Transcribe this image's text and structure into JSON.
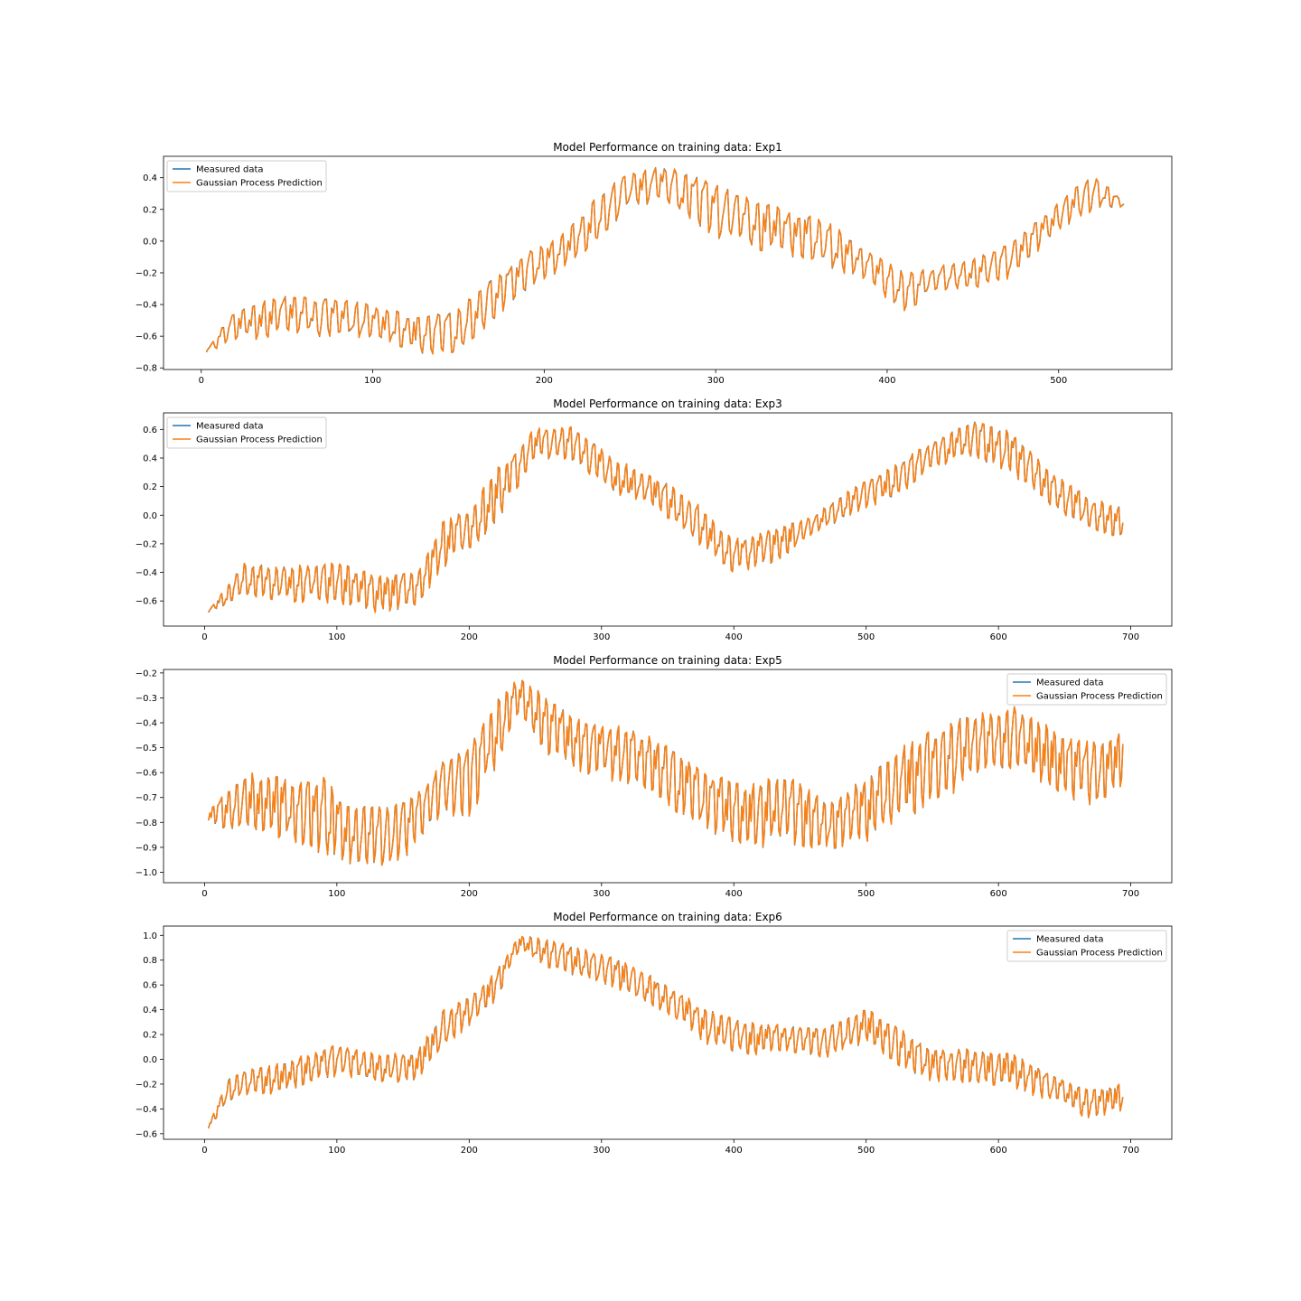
{
  "chart_data": [
    {
      "type": "line",
      "title": "Model Performance on training data: Exp1",
      "xlabel": "",
      "ylabel": "",
      "xlim": [
        -22,
        566
      ],
      "ylim": [
        -0.81,
        0.535
      ],
      "xticks": [
        0,
        100,
        200,
        300,
        400,
        500
      ],
      "yticks": [
        -0.8,
        -0.6,
        -0.4,
        -0.2,
        0.0,
        0.2,
        0.4
      ],
      "ytick_labels": [
        "−0.8",
        "−0.6",
        "−0.4",
        "−0.2",
        "0.0",
        "0.2",
        "0.4"
      ],
      "grid": false,
      "legend_position": "upper-left",
      "x_max": 538,
      "envelope": {
        "x": [
          3,
          20,
          50,
          90,
          110,
          130,
          150,
          170,
          190,
          210,
          230,
          250,
          270,
          300,
          330,
          360,
          390,
          410,
          430,
          450,
          470,
          500,
          520,
          538
        ],
        "high": [
          -0.69,
          -0.42,
          -0.33,
          -0.38,
          -0.43,
          -0.48,
          -0.43,
          -0.22,
          -0.07,
          0.03,
          0.28,
          0.45,
          0.47,
          0.38,
          0.23,
          0.16,
          -0.06,
          -0.2,
          -0.16,
          -0.11,
          -0.03,
          0.25,
          0.43,
          0.25
        ],
        "low": [
          -0.7,
          -0.65,
          -0.61,
          -0.64,
          -0.66,
          -0.75,
          -0.71,
          -0.52,
          -0.32,
          -0.2,
          -0.03,
          0.2,
          0.22,
          0.0,
          -0.09,
          -0.15,
          -0.3,
          -0.46,
          -0.32,
          -0.31,
          -0.25,
          0.05,
          0.18,
          0.22
        ]
      },
      "series": [
        {
          "name": "Measured data",
          "color": "#1f77b4"
        },
        {
          "name": "Gaussian Process Prediction",
          "color": "#ff7f0e"
        }
      ]
    },
    {
      "type": "line",
      "title": "Model Performance on training data: Exp3",
      "xlabel": "",
      "ylabel": "",
      "xlim": [
        -31,
        731
      ],
      "ylim": [
        -0.776,
        0.716
      ],
      "xticks": [
        0,
        100,
        200,
        300,
        400,
        500,
        600,
        700
      ],
      "yticks": [
        -0.6,
        -0.4,
        -0.2,
        0.0,
        0.2,
        0.4,
        0.6
      ],
      "ytick_labels": [
        "−0.6",
        "−0.4",
        "−0.2",
        "0.0",
        "0.2",
        "0.4",
        "0.6"
      ],
      "grid": false,
      "legend_position": "upper-left",
      "x_max": 694,
      "envelope": {
        "x": [
          3,
          30,
          60,
          100,
          130,
          160,
          180,
          200,
          220,
          250,
          280,
          310,
          340,
          370,
          400,
          430,
          460,
          490,
          520,
          550,
          580,
          610,
          640,
          670,
          694
        ],
        "high": [
          -0.67,
          -0.33,
          -0.36,
          -0.33,
          -0.42,
          -0.4,
          -0.05,
          0.05,
          0.32,
          0.61,
          0.62,
          0.4,
          0.28,
          0.1,
          -0.17,
          -0.1,
          0.0,
          0.2,
          0.34,
          0.52,
          0.66,
          0.6,
          0.3,
          0.12,
          0.05
        ],
        "low": [
          -0.68,
          -0.6,
          -0.62,
          -0.63,
          -0.7,
          -0.66,
          -0.4,
          -0.25,
          -0.1,
          0.38,
          0.36,
          0.1,
          0.05,
          -0.2,
          -0.42,
          -0.35,
          -0.15,
          -0.01,
          0.1,
          0.3,
          0.4,
          0.25,
          0.05,
          -0.13,
          -0.18
        ]
      },
      "series": [
        {
          "name": "Measured data",
          "color": "#1f77b4"
        },
        {
          "name": "Gaussian Process Prediction",
          "color": "#ff7f0e"
        }
      ]
    },
    {
      "type": "line",
      "title": "Model Performance on training data: Exp5",
      "xlabel": "",
      "ylabel": "",
      "xlim": [
        -31,
        731
      ],
      "ylim": [
        -1.042,
        -0.186
      ],
      "xticks": [
        0,
        100,
        200,
        300,
        400,
        500,
        600,
        700
      ],
      "yticks": [
        -1.0,
        -0.9,
        -0.8,
        -0.7,
        -0.6,
        -0.5,
        -0.4,
        -0.3,
        -0.2
      ],
      "ytick_labels": [
        "−1.0",
        "−0.9",
        "−0.8",
        "−0.7",
        "−0.6",
        "−0.5",
        "−0.4",
        "−0.3",
        "−0.2"
      ],
      "grid": false,
      "legend_position": "upper-right",
      "x_max": 694,
      "envelope": {
        "x": [
          3,
          30,
          60,
          90,
          110,
          140,
          160,
          180,
          200,
          220,
          238,
          260,
          290,
          320,
          350,
          380,
          410,
          440,
          470,
          500,
          530,
          560,
          580,
          610,
          640,
          670,
          694
        ],
        "high": [
          -0.75,
          -0.6,
          -0.62,
          -0.62,
          -0.72,
          -0.74,
          -0.68,
          -0.55,
          -0.5,
          -0.3,
          -0.22,
          -0.3,
          -0.4,
          -0.42,
          -0.48,
          -0.6,
          -0.65,
          -0.6,
          -0.72,
          -0.62,
          -0.48,
          -0.4,
          -0.36,
          -0.33,
          -0.42,
          -0.48,
          -0.43
        ],
        "low": [
          -0.8,
          -0.88,
          -0.88,
          -0.95,
          -0.98,
          -1.0,
          -0.92,
          -0.8,
          -0.8,
          -0.6,
          -0.36,
          -0.55,
          -0.62,
          -0.67,
          -0.75,
          -0.85,
          -0.92,
          -0.92,
          -0.92,
          -0.9,
          -0.82,
          -0.72,
          -0.65,
          -0.6,
          -0.68,
          -0.76,
          -0.68
        ]
      },
      "series": [
        {
          "name": "Measured data",
          "color": "#1f77b4"
        },
        {
          "name": "Gaussian Process Prediction",
          "color": "#ff7f0e"
        }
      ]
    },
    {
      "type": "line",
      "title": "Model Performance on training data: Exp6",
      "xlabel": "",
      "ylabel": "",
      "xlim": [
        -31,
        731
      ],
      "ylim": [
        -0.645,
        1.075
      ],
      "xticks": [
        0,
        100,
        200,
        300,
        400,
        500,
        600,
        700
      ],
      "yticks": [
        -0.6,
        -0.4,
        -0.2,
        0.0,
        0.2,
        0.4,
        0.6,
        0.8,
        1.0
      ],
      "ytick_labels": [
        "−0.6",
        "−0.4",
        "−0.2",
        "0.0",
        "0.2",
        "0.4",
        "0.6",
        "0.8",
        "1.0"
      ],
      "grid": false,
      "legend_position": "upper-right",
      "x_max": 694,
      "envelope": {
        "x": [
          3,
          20,
          50,
          80,
          100,
          130,
          160,
          180,
          200,
          220,
          238,
          260,
          290,
          320,
          350,
          380,
          410,
          440,
          470,
          500,
          520,
          550,
          580,
          610,
          640,
          670,
          694
        ],
        "high": [
          -0.53,
          -0.12,
          -0.05,
          0.05,
          0.12,
          0.05,
          0.05,
          0.4,
          0.5,
          0.7,
          1.0,
          0.97,
          0.88,
          0.78,
          0.6,
          0.4,
          0.3,
          0.27,
          0.25,
          0.42,
          0.28,
          0.08,
          0.08,
          0.05,
          -0.12,
          -0.25,
          -0.18
        ],
        "low": [
          -0.56,
          -0.34,
          -0.3,
          -0.22,
          -0.15,
          -0.22,
          -0.2,
          0.05,
          0.25,
          0.45,
          0.88,
          0.72,
          0.63,
          0.52,
          0.35,
          0.1,
          0.02,
          0.05,
          0.0,
          0.1,
          -0.05,
          -0.2,
          -0.2,
          -0.25,
          -0.35,
          -0.5,
          -0.43
        ]
      },
      "series": [
        {
          "name": "Measured data",
          "color": "#1f77b4"
        },
        {
          "name": "Gaussian Process Prediction",
          "color": "#ff7f0e"
        }
      ]
    }
  ]
}
